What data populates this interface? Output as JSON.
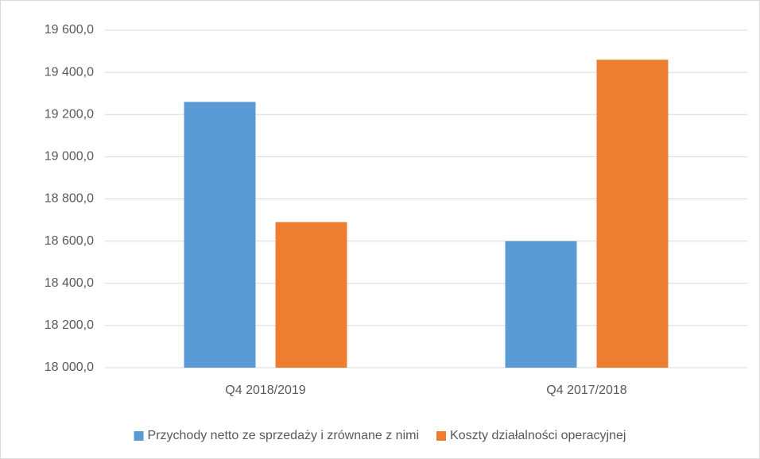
{
  "chart_data": {
    "type": "bar",
    "categories": [
      "Q4 2018/2019",
      "Q4 2017/2018"
    ],
    "series": [
      {
        "name": "Przychody netto ze sprzedaży i zrównane z nimi",
        "color": "#5b9bd5",
        "values": [
          19260,
          18600
        ]
      },
      {
        "name": "Koszty działalności operacyjnej",
        "color": "#ed7d31",
        "values": [
          18690,
          19460
        ]
      }
    ],
    "ylim": [
      18000,
      19600
    ],
    "yticks": [
      {
        "value": 18000,
        "label": "18 000,0"
      },
      {
        "value": 18200,
        "label": "18 200,0"
      },
      {
        "value": 18400,
        "label": "18 400,0"
      },
      {
        "value": 18600,
        "label": "18 600,0"
      },
      {
        "value": 18800,
        "label": "18 800,0"
      },
      {
        "value": 19000,
        "label": "19 000,0"
      },
      {
        "value": 19200,
        "label": "19 200,0"
      },
      {
        "value": 19400,
        "label": "19 400,0"
      },
      {
        "value": 19600,
        "label": "19 600,0"
      }
    ],
    "grid": true,
    "legend": "bottom"
  }
}
